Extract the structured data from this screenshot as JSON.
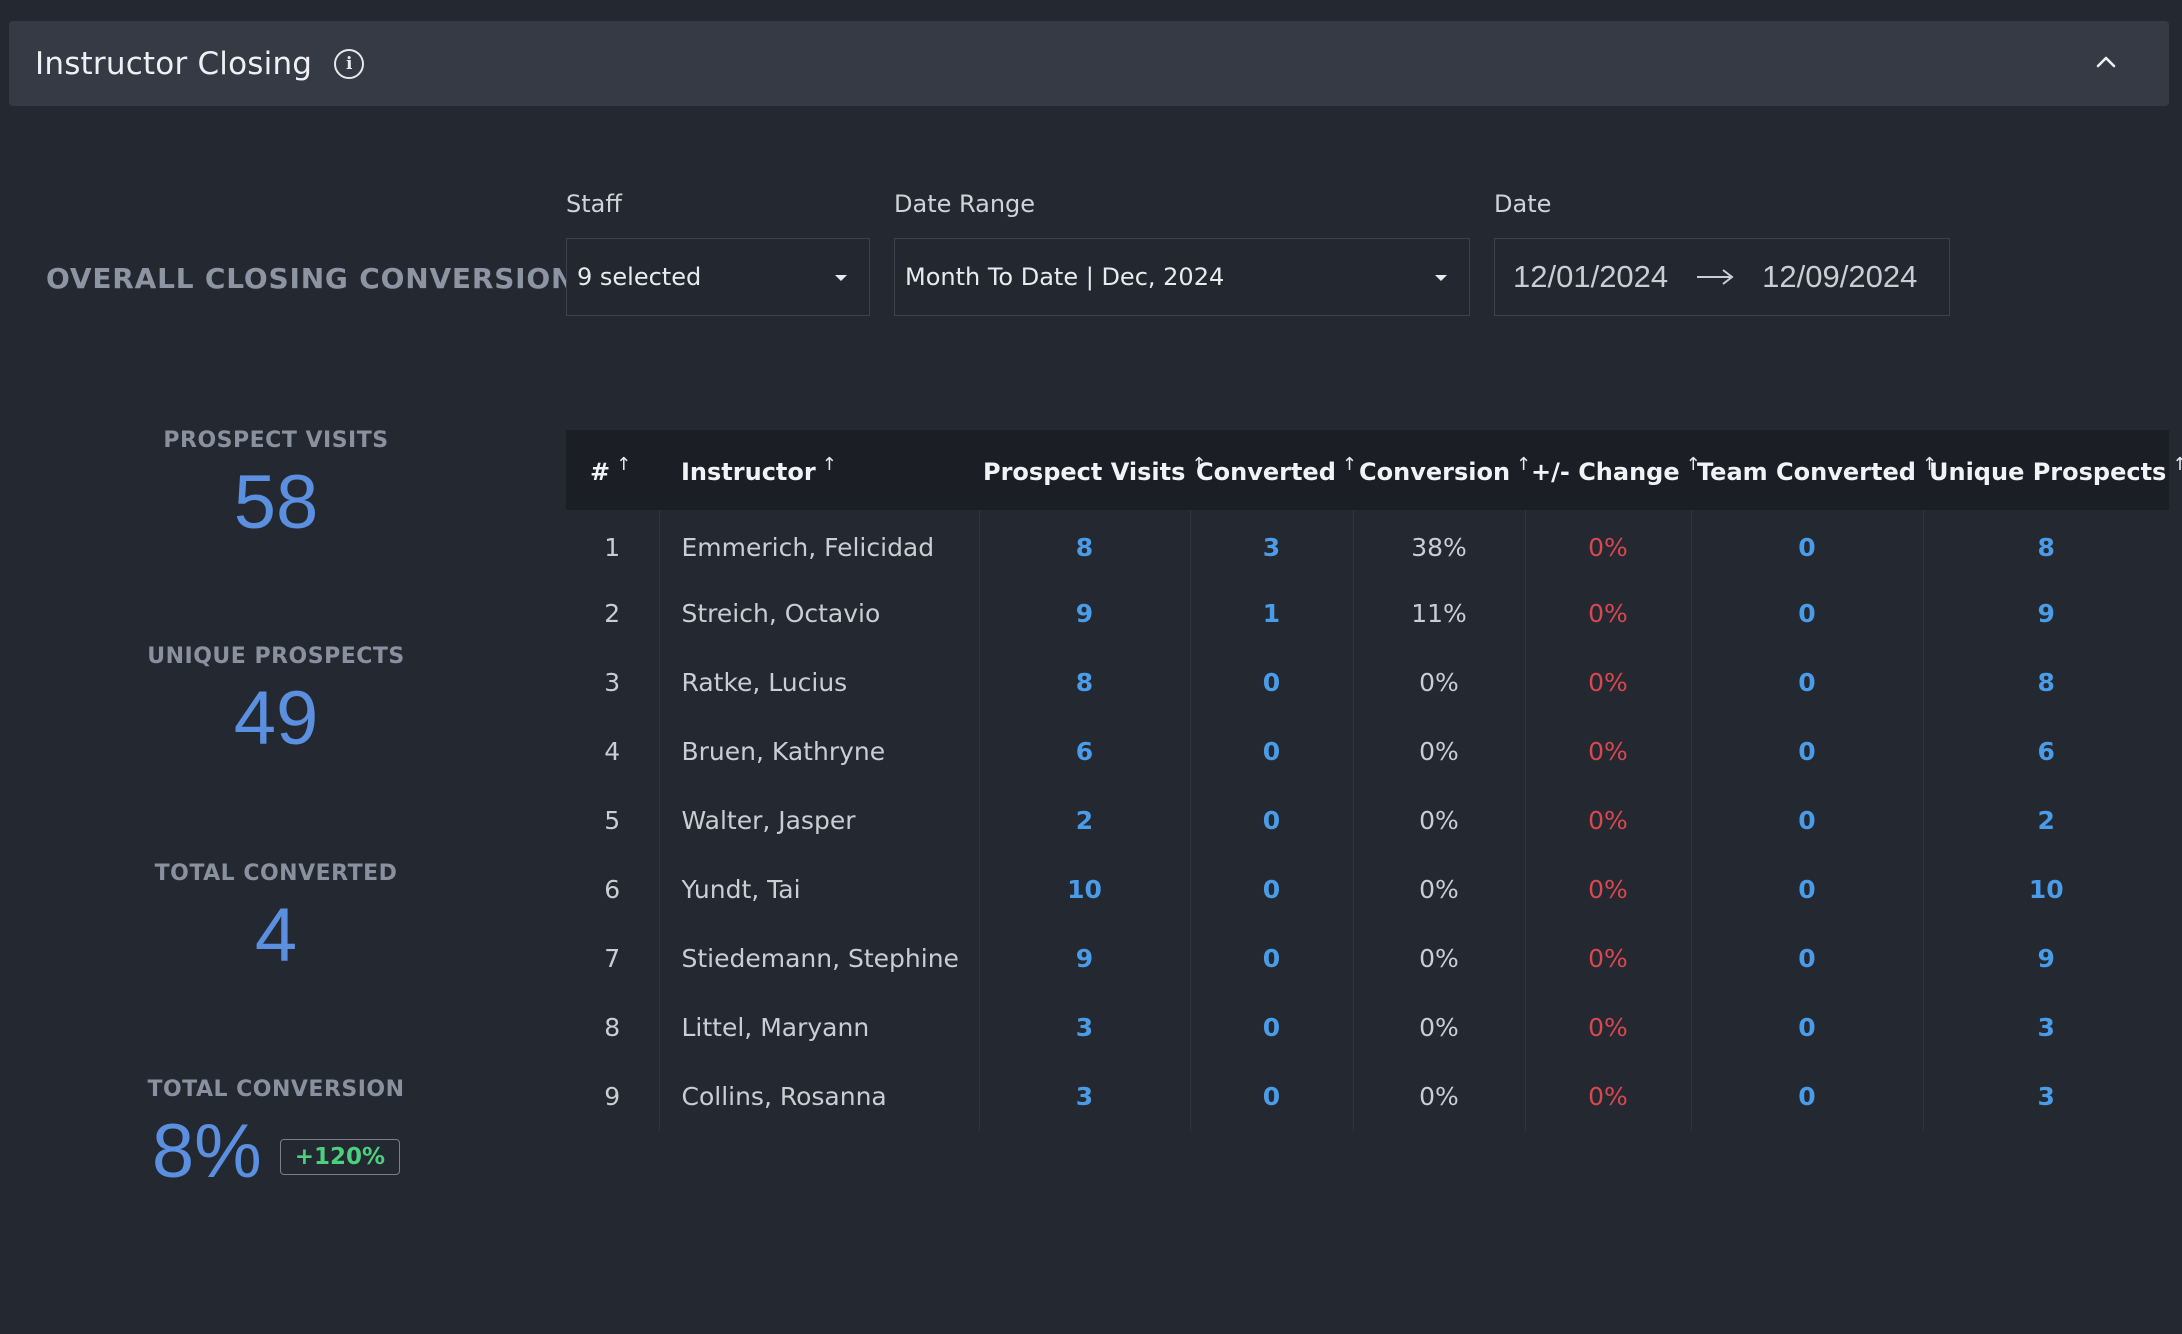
{
  "header": {
    "title": "Instructor Closing"
  },
  "overall": {
    "label": "OVERALL CLOSING CONVERSION"
  },
  "filters": {
    "staff": {
      "label": "Staff",
      "value": "9 selected"
    },
    "date_range": {
      "label": "Date Range",
      "value": "Month To Date | Dec, 2024"
    },
    "date": {
      "label": "Date",
      "start": "12/01/2024",
      "end": "12/09/2024"
    }
  },
  "stats": {
    "prospect_visits": {
      "label": "PROSPECT VISITS",
      "value": "58"
    },
    "unique_prospects": {
      "label": "UNIQUE PROSPECTS",
      "value": "49"
    },
    "total_converted": {
      "label": "TOTAL CONVERTED",
      "value": "4"
    },
    "total_conversion": {
      "label": "TOTAL CONVERSION",
      "value": "8%",
      "change": "+120%"
    }
  },
  "table": {
    "columns": [
      "#",
      "Instructor",
      "Prospect Visits",
      "Converted",
      "Conversion",
      "+/- Change",
      "Team Converted",
      "Unique Prospects"
    ],
    "sort_glyph": "↑",
    "rows": [
      [
        "1",
        "Emmerich, Felicidad",
        "8",
        "3",
        "38%",
        "0%",
        "0",
        "8"
      ],
      [
        "2",
        "Streich, Octavio",
        "9",
        "1",
        "11%",
        "0%",
        "0",
        "9"
      ],
      [
        "3",
        "Ratke, Lucius",
        "8",
        "0",
        "0%",
        "0%",
        "0",
        "8"
      ],
      [
        "4",
        "Bruen, Kathryne",
        "6",
        "0",
        "0%",
        "0%",
        "0",
        "6"
      ],
      [
        "5",
        "Walter, Jasper",
        "2",
        "0",
        "0%",
        "0%",
        "0",
        "2"
      ],
      [
        "6",
        "Yundt, Tai",
        "10",
        "0",
        "0%",
        "0%",
        "0",
        "10"
      ],
      [
        "7",
        "Stiedemann, Stephine",
        "9",
        "0",
        "0%",
        "0%",
        "0",
        "9"
      ],
      [
        "8",
        "Littel, Maryann",
        "3",
        "0",
        "0%",
        "0%",
        "0",
        "3"
      ],
      [
        "9",
        "Collins, Rosanna",
        "3",
        "0",
        "0%",
        "0%",
        "0",
        "3"
      ]
    ]
  },
  "colors": {
    "accent_blue": "#5b8fe0",
    "link_blue": "#4b9ce8",
    "negative_red": "#d9474f",
    "positive_green": "#4cd07d",
    "background": "#242831"
  },
  "icons": {
    "info": "info-icon",
    "collapse": "chevron-up-icon",
    "dropdown": "caret-down-icon",
    "date_arrow": "arrow-right-icon"
  }
}
